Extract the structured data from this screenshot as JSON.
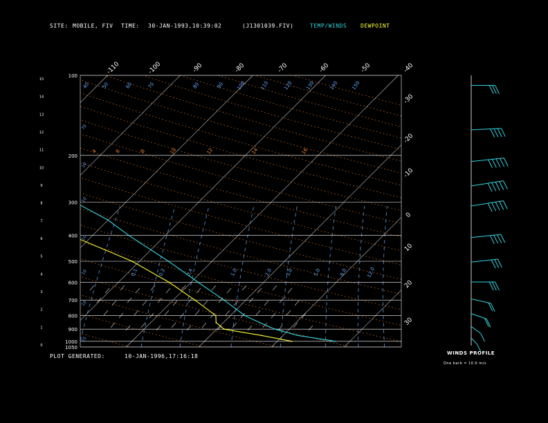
{
  "header": {
    "site_label": "SITE:",
    "site_value": "MOBILE, FIV",
    "time_label": "TIME:",
    "time_value": "30-JAN-1993,10:39:02",
    "file_value": "(J1301039.FIV)",
    "legend_temp": "TEMP/WINDS",
    "legend_dewpoint": "DEWPOINT"
  },
  "footer": {
    "generated_label": "PLOT GENERATED:",
    "generated_value": "10-JAN-1996,17:16:18"
  },
  "winds_panel": {
    "title": "WINDS PROFILE",
    "note": "One barb = 10.0 m/s"
  },
  "colors": {
    "temp": "#33d6e0",
    "dewpoint": "#ffff33",
    "isobar": "#ffffff",
    "dry_adiabat": "#ff8833",
    "mixing_ratio": "#66aaff"
  },
  "chart_data": {
    "type": "line",
    "title": "",
    "xlabel": "",
    "ylabel": "",
    "pressure_ticks": [
      "100",
      "200",
      "300",
      "400",
      "500",
      "600",
      "700",
      "800",
      "900",
      "1000",
      "1050"
    ],
    "height_ticks": [
      "15",
      "14",
      "13",
      "12",
      "11",
      "10",
      "9",
      "8",
      "7",
      "6",
      "5",
      "4",
      "3",
      "2",
      "1",
      "0"
    ],
    "top_temp_ticks": [
      "-110",
      "-100",
      "-90",
      "-80",
      "-70",
      "-60",
      "-50",
      "-40"
    ],
    "right_temp_ticks": [
      "-30",
      "-20",
      "-10",
      "0",
      "10",
      "20",
      "30"
    ],
    "theta_labels_top": [
      "80",
      "90",
      "100",
      "110",
      "120",
      "130",
      "140",
      "150"
    ],
    "theta_labels_left": [
      "40",
      "50",
      "60",
      "70"
    ],
    "adiabat_row_labels": [
      "4",
      "6",
      "8",
      "10",
      "12",
      "14",
      "16"
    ],
    "mixing_ratio_labels": [
      "0.1",
      "0.2",
      "0.4",
      "1.0",
      "2.0",
      "3.0",
      "5.0",
      "8.0",
      "12.0"
    ],
    "series": [
      {
        "name": "TEMP/WINDS",
        "points": [
          {
            "p": 1000,
            "t": 18
          },
          {
            "p": 950,
            "t": 12
          },
          {
            "p": 900,
            "t": 8
          },
          {
            "p": 850,
            "t": 5
          },
          {
            "p": 800,
            "t": 2
          },
          {
            "p": 700,
            "t": -3
          },
          {
            "p": 600,
            "t": -9
          },
          {
            "p": 500,
            "t": -16
          },
          {
            "p": 400,
            "t": -25
          },
          {
            "p": 350,
            "t": -30
          },
          {
            "p": 300,
            "t": -37
          },
          {
            "p": 250,
            "t": -45
          },
          {
            "p": 200,
            "t": -54
          },
          {
            "p": 150,
            "t": -59
          },
          {
            "p": 125,
            "t": -62
          },
          {
            "p": 100,
            "t": -68
          }
        ]
      },
      {
        "name": "DEWPOINT",
        "points": [
          {
            "p": 1000,
            "t": 12
          },
          {
            "p": 950,
            "t": 7
          },
          {
            "p": 900,
            "t": 1
          },
          {
            "p": 850,
            "t": -1
          },
          {
            "p": 800,
            "t": -2
          },
          {
            "p": 700,
            "t": -7
          },
          {
            "p": 600,
            "t": -13
          },
          {
            "p": 500,
            "t": -21
          },
          {
            "p": 400,
            "t": -33
          },
          {
            "p": 350,
            "t": -41
          },
          {
            "p": 330,
            "t": -38
          },
          {
            "p": 300,
            "t": -55
          },
          {
            "p": 250,
            "t": -63
          },
          {
            "p": 200,
            "t": -70
          },
          {
            "p": 150,
            "t": -80
          },
          {
            "p": 100,
            "t": -93
          }
        ]
      }
    ],
    "winds": [
      {
        "p": 1000,
        "dir": 330,
        "speed": 5
      },
      {
        "p": 900,
        "dir": 320,
        "speed": 10
      },
      {
        "p": 800,
        "dir": 300,
        "speed": 15
      },
      {
        "p": 700,
        "dir": 290,
        "speed": 20
      },
      {
        "p": 600,
        "dir": 270,
        "speed": 25
      },
      {
        "p": 500,
        "dir": 260,
        "speed": 30
      },
      {
        "p": 400,
        "dir": 260,
        "speed": 35
      },
      {
        "p": 300,
        "dir": 255,
        "speed": 45
      },
      {
        "p": 250,
        "dir": 255,
        "speed": 50
      },
      {
        "p": 200,
        "dir": 260,
        "speed": 45
      },
      {
        "p": 150,
        "dir": 265,
        "speed": 35
      },
      {
        "p": 100,
        "dir": 270,
        "speed": 25
      }
    ]
  }
}
